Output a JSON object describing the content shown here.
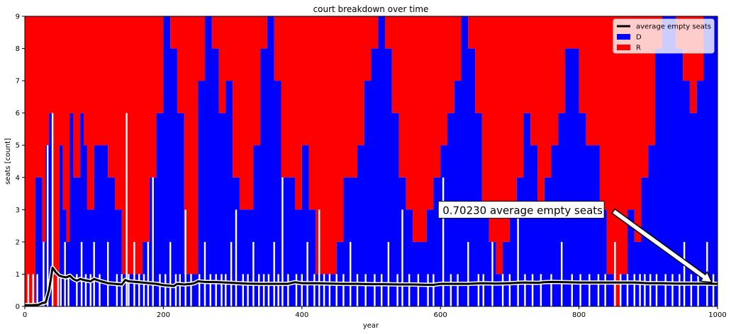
{
  "chart_data": {
    "type": "area",
    "title": "court breakdown over time",
    "xlabel": "year",
    "ylabel": "seats [count]",
    "xlim": [
      0,
      1000
    ],
    "ylim": [
      0,
      9
    ],
    "xticks": [
      0,
      200,
      400,
      600,
      800,
      1000
    ],
    "yticks": [
      0,
      1,
      2,
      3,
      4,
      5,
      6,
      7,
      8,
      9
    ],
    "grid": false,
    "legend_position": "top-right",
    "series": [
      {
        "name": "D",
        "type": "stacked-area",
        "color": "#0000ff",
        "x": [
          0,
          10,
          15,
          20,
          25,
          30,
          35,
          40,
          45,
          50,
          55,
          60,
          65,
          70,
          75,
          80,
          85,
          90,
          95,
          100,
          110,
          120,
          130,
          140,
          150,
          160,
          170,
          180,
          190,
          200,
          210,
          220,
          230,
          240,
          250,
          260,
          270,
          280,
          290,
          300,
          310,
          320,
          330,
          340,
          350,
          360,
          370,
          380,
          390,
          400,
          410,
          420,
          430,
          440,
          450,
          460,
          470,
          480,
          490,
          500,
          510,
          520,
          530,
          540,
          550,
          560,
          570,
          580,
          590,
          600,
          610,
          620,
          630,
          640,
          650,
          660,
          670,
          680,
          690,
          700,
          710,
          720,
          730,
          740,
          750,
          760,
          770,
          780,
          790,
          800,
          810,
          820,
          830,
          840,
          850,
          860,
          870,
          880,
          890,
          900,
          910,
          920,
          930,
          940,
          950,
          960,
          970,
          980,
          990,
          1000
        ],
        "values": [
          0,
          0,
          4,
          4,
          2,
          5,
          6,
          0,
          0,
          5,
          3,
          2,
          6,
          4,
          4,
          6,
          5,
          3,
          3,
          5,
          5,
          4,
          3,
          1,
          1,
          1,
          2,
          4,
          6,
          9,
          8,
          6,
          1,
          1,
          7,
          9,
          8,
          6,
          7,
          4,
          3,
          3,
          5,
          8,
          9,
          7,
          4,
          4,
          3,
          5,
          3,
          1,
          1,
          1,
          2,
          4,
          4,
          5,
          7,
          8,
          9,
          8,
          6,
          4,
          3,
          2,
          2,
          3,
          4,
          5,
          6,
          7,
          9,
          8,
          6,
          3,
          2,
          1,
          2,
          3,
          4,
          6,
          5,
          3,
          4,
          5,
          6,
          8,
          8,
          6,
          5,
          5,
          3,
          1,
          0,
          1,
          3,
          2,
          4,
          5,
          8,
          9,
          9,
          8,
          7,
          6,
          7,
          9,
          9,
          9
        ]
      },
      {
        "name": "R",
        "type": "stacked-area",
        "color": "#ff0000",
        "x": [
          0,
          10,
          15,
          20,
          25,
          30,
          35,
          40,
          45,
          50,
          55,
          60,
          65,
          70,
          75,
          80,
          85,
          90,
          95,
          100,
          110,
          120,
          130,
          140,
          150,
          160,
          170,
          180,
          190,
          200,
          210,
          220,
          230,
          240,
          250,
          260,
          270,
          280,
          290,
          300,
          310,
          320,
          330,
          340,
          350,
          360,
          370,
          380,
          390,
          400,
          410,
          420,
          430,
          440,
          450,
          460,
          470,
          480,
          490,
          500,
          510,
          520,
          530,
          540,
          550,
          560,
          570,
          580,
          590,
          600,
          610,
          620,
          630,
          640,
          650,
          660,
          670,
          680,
          690,
          700,
          710,
          720,
          730,
          740,
          750,
          760,
          770,
          780,
          790,
          800,
          810,
          820,
          830,
          840,
          850,
          860,
          870,
          880,
          890,
          900,
          910,
          920,
          930,
          940,
          950,
          960,
          970,
          980,
          990,
          1000
        ],
        "values": [
          9,
          9,
          5,
          5,
          7,
          4,
          3,
          9,
          9,
          4,
          6,
          7,
          3,
          5,
          5,
          3,
          4,
          6,
          6,
          4,
          4,
          5,
          6,
          8,
          8,
          8,
          7,
          5,
          3,
          0,
          1,
          3,
          8,
          8,
          2,
          0,
          1,
          3,
          2,
          5,
          6,
          6,
          4,
          1,
          0,
          2,
          5,
          5,
          6,
          4,
          6,
          8,
          8,
          8,
          7,
          5,
          5,
          4,
          2,
          1,
          0,
          1,
          3,
          5,
          6,
          7,
          7,
          6,
          5,
          4,
          3,
          2,
          0,
          1,
          3,
          6,
          7,
          8,
          7,
          6,
          5,
          3,
          4,
          6,
          5,
          4,
          3,
          1,
          1,
          3,
          4,
          4,
          6,
          8,
          9,
          8,
          6,
          7,
          5,
          4,
          1,
          0,
          0,
          1,
          2,
          3,
          2,
          0,
          0,
          0
        ]
      },
      {
        "name": "average empty seats",
        "type": "line",
        "color": "#000000",
        "x": [
          0,
          10,
          20,
          25,
          30,
          35,
          40,
          45,
          50,
          55,
          60,
          65,
          70,
          75,
          80,
          85,
          90,
          95,
          100,
          110,
          120,
          130,
          140,
          145,
          150,
          160,
          170,
          180,
          190,
          200,
          210,
          215,
          220,
          230,
          240,
          245,
          250,
          260,
          280,
          300,
          320,
          340,
          360,
          380,
          390,
          400,
          420,
          440,
          460,
          480,
          500,
          520,
          540,
          560,
          580,
          590,
          600,
          620,
          640,
          660,
          680,
          700,
          720,
          740,
          750,
          760,
          780,
          800,
          820,
          840,
          860,
          880,
          900,
          920,
          940,
          960,
          980,
          1000
        ],
        "values": [
          0.04,
          0.04,
          0.05,
          0.1,
          0.12,
          0.5,
          1.2,
          1.05,
          0.95,
          0.92,
          0.9,
          0.95,
          0.85,
          0.8,
          0.85,
          0.82,
          0.8,
          0.78,
          0.85,
          0.78,
          0.72,
          0.7,
          0.68,
          0.82,
          0.78,
          0.76,
          0.74,
          0.72,
          0.7,
          0.66,
          0.64,
          0.63,
          0.7,
          0.68,
          0.7,
          0.72,
          0.78,
          0.76,
          0.75,
          0.73,
          0.71,
          0.7,
          0.7,
          0.7,
          0.75,
          0.72,
          0.72,
          0.71,
          0.7,
          0.7,
          0.69,
          0.69,
          0.68,
          0.68,
          0.67,
          0.67,
          0.7,
          0.7,
          0.7,
          0.72,
          0.71,
          0.72,
          0.74,
          0.73,
          0.75,
          0.76,
          0.75,
          0.74,
          0.74,
          0.74,
          0.74,
          0.74,
          0.72,
          0.72,
          0.71,
          0.71,
          0.71,
          0.7
        ]
      }
    ],
    "empty_seat_spikes": {
      "color": "#ffffff",
      "x": [
        5,
        12,
        18,
        27,
        33,
        40,
        48,
        52,
        58,
        63,
        75,
        82,
        88,
        95,
        100,
        108,
        120,
        133,
        140,
        147,
        150,
        158,
        165,
        172,
        178,
        185,
        195,
        203,
        210,
        218,
        224,
        232,
        240,
        252,
        260,
        268,
        276,
        284,
        290,
        298,
        305,
        315,
        322,
        330,
        338,
        345,
        352,
        360,
        366,
        372,
        380,
        392,
        400,
        408,
        418,
        425,
        432,
        440,
        450,
        460,
        470,
        480,
        492,
        505,
        515,
        525,
        538,
        545,
        555,
        568,
        582,
        590,
        604,
        615,
        625,
        640,
        655,
        662,
        675,
        690,
        700,
        712,
        722,
        733,
        745,
        760,
        775,
        790,
        802,
        815,
        828,
        838,
        852,
        860,
        870,
        880,
        888,
        895,
        903,
        912,
        925,
        935,
        945,
        952,
        962,
        972,
        985,
        994
      ],
      "values": [
        1,
        1,
        1,
        2,
        5,
        6,
        1,
        1,
        2,
        1,
        1,
        2,
        1,
        1,
        2,
        1,
        2,
        1,
        1,
        6,
        1,
        2,
        1,
        1,
        2,
        4,
        1,
        1,
        2,
        1,
        1,
        3,
        1,
        1,
        2,
        1,
        1,
        1,
        1,
        2,
        3,
        1,
        1,
        2,
        1,
        1,
        1,
        2,
        1,
        4,
        1,
        1,
        1,
        2,
        1,
        3,
        1,
        1,
        1,
        1,
        2,
        1,
        1,
        1,
        1,
        2,
        1,
        3,
        1,
        1,
        1,
        1,
        4,
        1,
        1,
        2,
        1,
        1,
        2,
        1,
        1,
        3,
        1,
        1,
        1,
        1,
        2,
        1,
        1,
        1,
        1,
        1,
        2,
        1,
        1,
        1,
        1,
        1,
        1,
        1,
        1,
        1,
        1,
        2,
        1,
        1,
        2,
        1
      ]
    },
    "legend": [
      {
        "label": "average empty seats",
        "color": "#000000",
        "kind": "line"
      },
      {
        "label": "D",
        "color": "#0000ff",
        "kind": "patch"
      },
      {
        "label": "R",
        "color": "#ff0000",
        "kind": "patch"
      }
    ],
    "annotation": {
      "text": "0.70230 average empty seats",
      "text_x": 600,
      "text_y": 3.0,
      "arrow_to_x": 1000,
      "arrow_to_y": 0.7
    }
  }
}
